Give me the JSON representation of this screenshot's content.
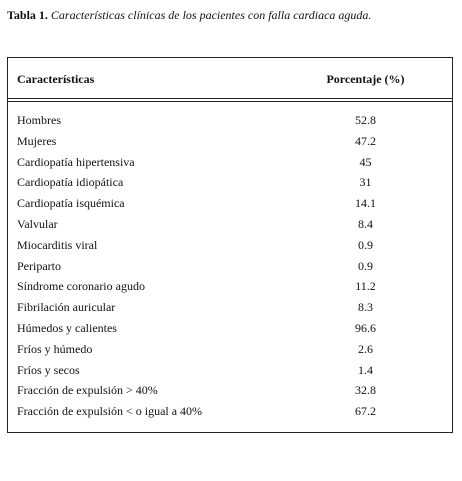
{
  "caption": {
    "label": "Tabla 1.",
    "text": "Características clínicas de los pacientes con falla cardiaca aguda."
  },
  "table": {
    "header": [
      "Características",
      "Porcentaje (%)"
    ],
    "rows": [
      [
        "Hombres",
        "52.8"
      ],
      [
        "Mujeres",
        "47.2"
      ],
      [
        "Cardiopatía hipertensiva",
        "45"
      ],
      [
        "Cardiopatía idiopática",
        "31"
      ],
      [
        "Cardiopatía isquémica",
        "14.1"
      ],
      [
        "Valvular",
        "8.4"
      ],
      [
        "Miocarditis viral",
        "0.9"
      ],
      [
        "Periparto",
        "0.9"
      ],
      [
        "Síndrome coronario agudo",
        "11.2"
      ],
      [
        "Fibrilación auricular",
        "8.3"
      ],
      [
        "Húmedos y calientes",
        "96.6"
      ],
      [
        "Fríos y húmedo",
        "2.6"
      ],
      [
        "Fríos y secos",
        "1.4"
      ],
      [
        "Fracción de expulsión > 40%",
        "32.8"
      ],
      [
        "Fracción de expulsión < o igual a 40%",
        "67.2"
      ]
    ]
  }
}
